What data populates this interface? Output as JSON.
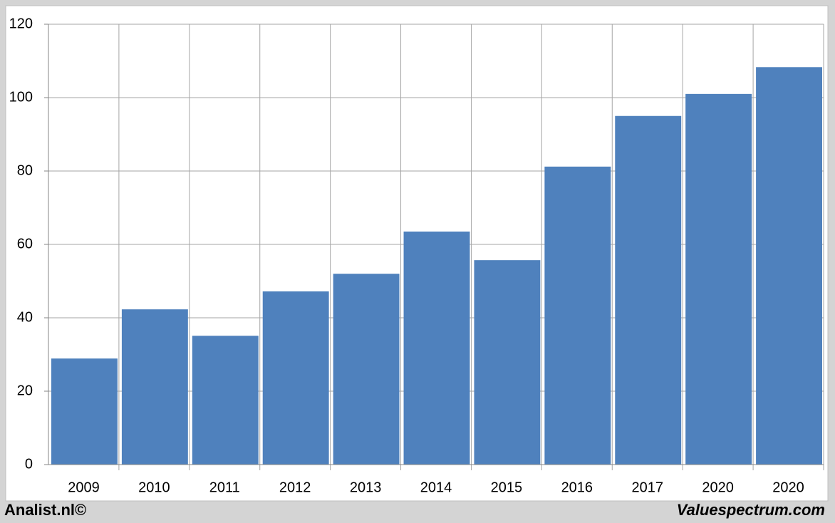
{
  "chart_data": {
    "type": "bar",
    "categories": [
      "2009",
      "2010",
      "2011",
      "2012",
      "2013",
      "2014",
      "2015",
      "2016",
      "2017",
      "2020",
      "2020"
    ],
    "values": [
      28.9,
      42.3,
      35.1,
      47.2,
      52.0,
      63.5,
      55.7,
      81.2,
      95.0,
      101.0,
      108.3
    ],
    "color": "#4f81bd",
    "ylim": [
      0,
      120
    ],
    "yticks": [
      0,
      20,
      40,
      60,
      80,
      100,
      120
    ],
    "grid": true
  },
  "footer": {
    "left": "Analist.nl©",
    "right": "Valuespectrum.com"
  }
}
